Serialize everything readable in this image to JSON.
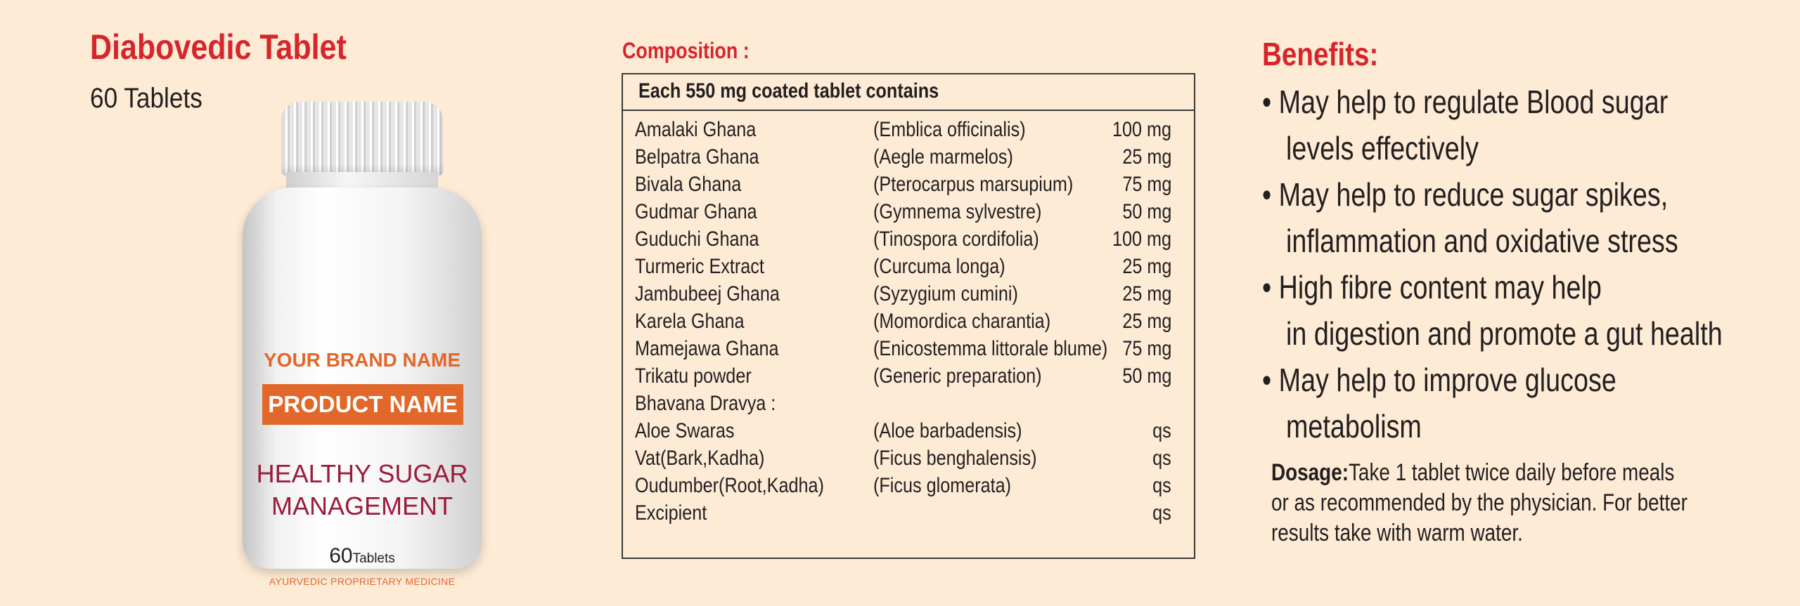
{
  "product": {
    "title": "Diabovedic Tablet",
    "quantity": "60 Tablets"
  },
  "bottle_label": {
    "brand": "YOUR BRAND NAME",
    "product_name": "PRODUCT NAME",
    "tagline_line1": "HEALTHY SUGAR",
    "tagline_line2": "MANAGEMENT",
    "count_number": "60",
    "count_unit": "Tablets",
    "medicine_type": "AYURVEDIC PROPRIETARY MEDICINE",
    "colors": {
      "brand_orange": "#e2672a",
      "tagline_maroon": "#9b1c3a"
    }
  },
  "composition": {
    "title": "Composition :",
    "header": "Each 550 mg coated tablet contains",
    "rows": [
      {
        "name": "Amalaki Ghana",
        "botanical": "(Emblica officinalis)",
        "qty": "100 mg"
      },
      {
        "name": "Belpatra Ghana",
        "botanical": "(Aegle marmelos)",
        "qty": "25 mg"
      },
      {
        "name": "Bivala Ghana",
        "botanical": "(Pterocarpus marsupium)",
        "qty": "75 mg"
      },
      {
        "name": "Gudmar Ghana",
        "botanical": "(Gymnema sylvestre)",
        "qty": "50 mg"
      },
      {
        "name": "Guduchi Ghana",
        "botanical": "(Tinospora cordifolia)",
        "qty": "100 mg"
      },
      {
        "name": "Turmeric Extract",
        "botanical": "(Curcuma longa)",
        "qty": "25 mg"
      },
      {
        "name": "Jambubeej Ghana",
        "botanical": "(Syzygium cumini)",
        "qty": "25 mg"
      },
      {
        "name": "Karela Ghana",
        "botanical": "(Momordica charantia)",
        "qty": "25 mg"
      },
      {
        "name": "Mamejawa Ghana",
        "botanical": "(Enicostemma littorale blume)",
        "qty": "75 mg"
      },
      {
        "name": "Trikatu powder",
        "botanical": "(Generic preparation)",
        "qty": "50 mg"
      },
      {
        "name": "Bhavana Dravya :",
        "botanical": "",
        "qty": ""
      },
      {
        "name": "Aloe Swaras",
        "botanical": "(Aloe barbadensis)",
        "qty": "qs"
      },
      {
        "name": "Vat(Bark,Kadha)",
        "botanical": "(Ficus benghalensis)",
        "qty": "qs"
      },
      {
        "name": "Oudumber(Root,Kadha)",
        "botanical": "(Ficus glomerata)",
        "qty": "qs"
      },
      {
        "name": "Excipient",
        "botanical": "",
        "qty": "qs"
      }
    ]
  },
  "benefits": {
    "title": "Benefits:",
    "items": [
      {
        "line1": "• May help to regulate Blood sugar",
        "line2": "levels effectively"
      },
      {
        "line1": "• May help to reduce sugar spikes,",
        "line2": "inflammation and oxidative stress"
      },
      {
        "line1": "• High fibre content may help",
        "line2": "in digestion and promote a gut health"
      },
      {
        "line1": "• May help to improve glucose",
        "line2": "metabolism"
      }
    ]
  },
  "dosage": {
    "label": "Dosage:",
    "line1": " Take 1 tablet twice daily before meals",
    "line2": "or as recommended by the physician. For better",
    "line3": "results take with warm water."
  },
  "colors": {
    "background": "#fdebd6",
    "heading_red": "#d7262b",
    "text": "#231f20"
  }
}
